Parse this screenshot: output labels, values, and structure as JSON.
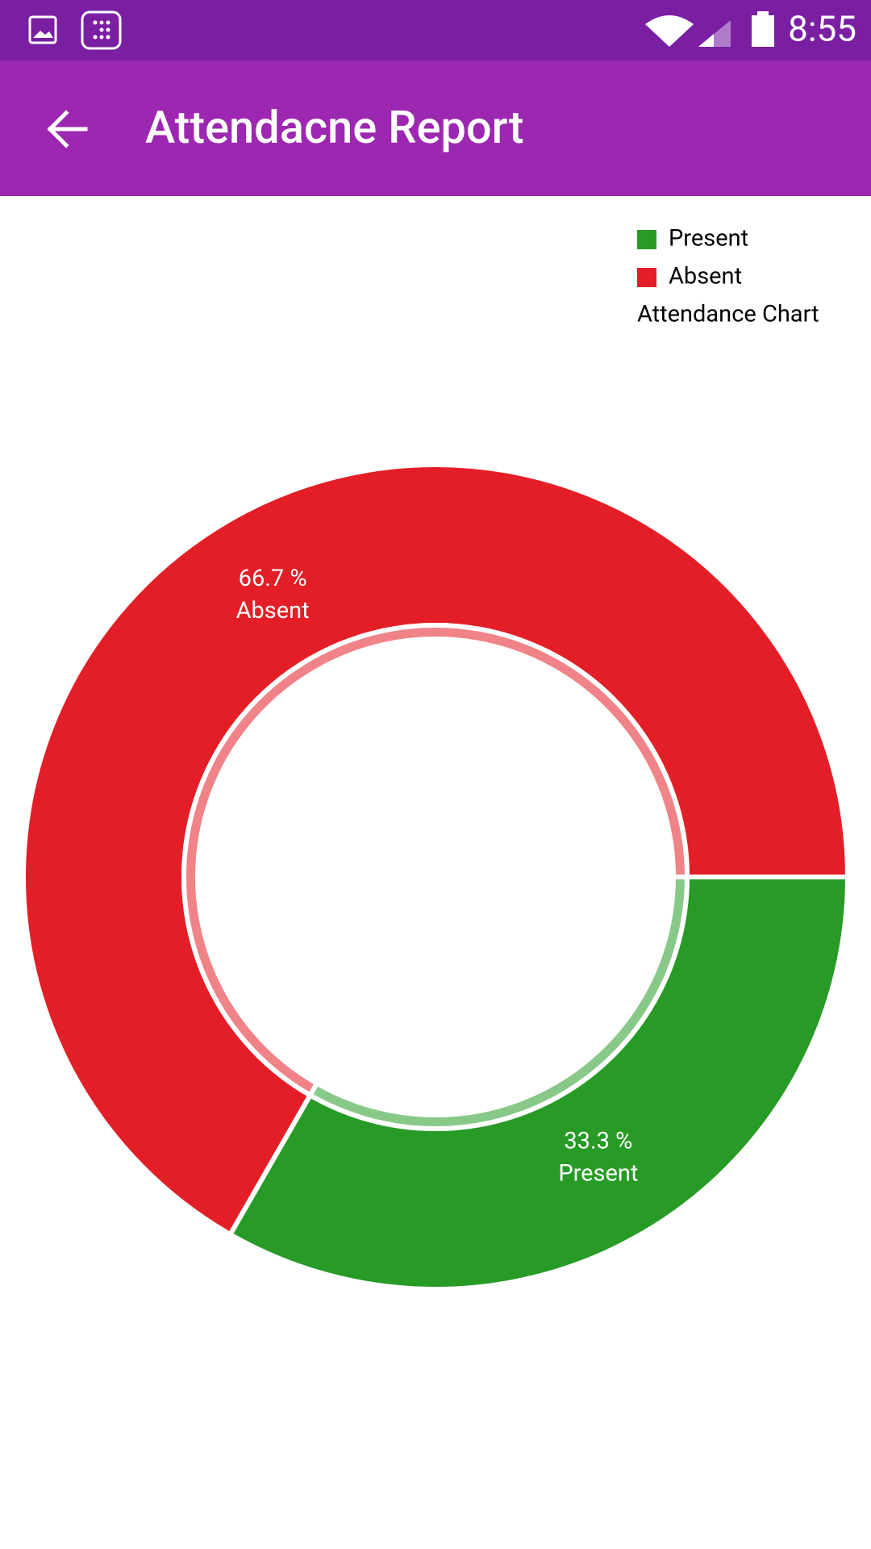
{
  "status_bar": {
    "time": "8:55"
  },
  "app_bar": {
    "title": "Attendacne Report"
  },
  "chart_data": {
    "type": "pie",
    "title": "Attendance Chart",
    "categories": [
      "Present",
      "Absent"
    ],
    "values": [
      33.3,
      66.7
    ],
    "value_labels": [
      "33.3 %",
      "66.7 %"
    ],
    "colors": [
      "#279B26",
      "#E41E26"
    ],
    "legend": "top-right",
    "donut": true
  }
}
